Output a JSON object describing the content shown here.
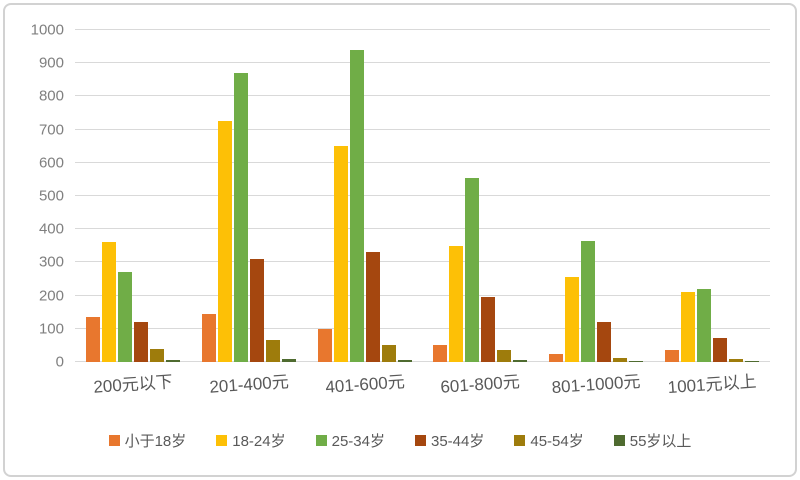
{
  "chart_data": {
    "type": "bar",
    "title": "",
    "categories": [
      "200元以下",
      "201-400元",
      "401-600元",
      "601-800元",
      "801-1000元",
      "1001元以上"
    ],
    "series": [
      {
        "name": "小于18岁",
        "color": "#e8772e",
        "values": [
          135,
          145,
          100,
          50,
          25,
          35
        ]
      },
      {
        "name": "18-24岁",
        "color": "#fdc006",
        "values": [
          360,
          725,
          650,
          350,
          255,
          210
        ]
      },
      {
        "name": "25-34岁",
        "color": "#70ad47",
        "values": [
          270,
          870,
          940,
          555,
          365,
          220
        ]
      },
      {
        "name": "35-44岁",
        "color": "#a5470f",
        "values": [
          120,
          310,
          330,
          195,
          122,
          72
        ]
      },
      {
        "name": "45-54岁",
        "color": "#9e7c0c",
        "values": [
          40,
          65,
          50,
          35,
          13,
          8
        ]
      },
      {
        "name": "55岁以上",
        "color": "#4f6b30",
        "values": [
          5,
          8,
          5,
          5,
          3,
          3
        ]
      }
    ],
    "xlabel": "",
    "ylabel": "",
    "ylim": [
      0,
      1000
    ],
    "yticks": [
      0,
      100,
      200,
      300,
      400,
      500,
      600,
      700,
      800,
      900,
      1000
    ],
    "grid": true,
    "legend_position": "bottom"
  },
  "style": {
    "grid_color": "#d9d9d9",
    "axis_text_color": "#7f7f7f",
    "label_text_color": "#595959",
    "frame_border_color": "#d2d2d2",
    "background": "#ffffff"
  }
}
